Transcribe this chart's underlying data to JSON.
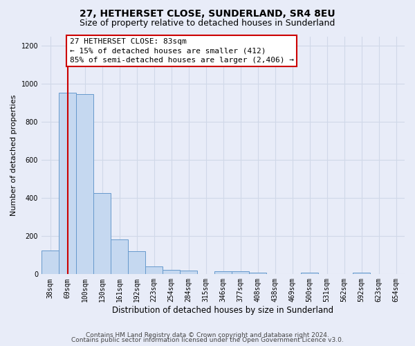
{
  "title": "27, HETHERSET CLOSE, SUNDERLAND, SR4 8EU",
  "subtitle": "Size of property relative to detached houses in Sunderland",
  "xlabel": "Distribution of detached houses by size in Sunderland",
  "ylabel": "Number of detached properties",
  "categories": [
    "38sqm",
    "69sqm",
    "100sqm",
    "130sqm",
    "161sqm",
    "192sqm",
    "223sqm",
    "254sqm",
    "284sqm",
    "315sqm",
    "346sqm",
    "377sqm",
    "408sqm",
    "438sqm",
    "469sqm",
    "500sqm",
    "531sqm",
    "562sqm",
    "592sqm",
    "623sqm",
    "654sqm"
  ],
  "values": [
    125,
    955,
    948,
    428,
    183,
    120,
    42,
    22,
    20,
    0,
    15,
    15,
    10,
    0,
    0,
    8,
    0,
    0,
    8,
    0,
    0
  ],
  "bar_color": "#c5d8f0",
  "bar_edge_color": "#6699cc",
  "property_line_x": 1.0,
  "annotation_lines": [
    "27 HETHERSET CLOSE: 83sqm",
    "← 15% of detached houses are smaller (412)",
    "85% of semi-detached houses are larger (2,406) →"
  ],
  "annotation_box_edge_color": "#cc0000",
  "property_line_color": "#cc0000",
  "ylim": [
    0,
    1250
  ],
  "yticks": [
    0,
    200,
    400,
    600,
    800,
    1000,
    1200
  ],
  "footer1": "Contains HM Land Registry data © Crown copyright and database right 2024.",
  "footer2": "Contains public sector information licensed under the Open Government Licence v3.0.",
  "bg_color": "#e8ecf8",
  "grid_color": "#d0d8e8",
  "title_fontsize": 10,
  "subtitle_fontsize": 9,
  "ylabel_fontsize": 8,
  "xlabel_fontsize": 8.5,
  "tick_fontsize": 7,
  "annotation_fontsize": 8,
  "footer_fontsize": 6.5
}
